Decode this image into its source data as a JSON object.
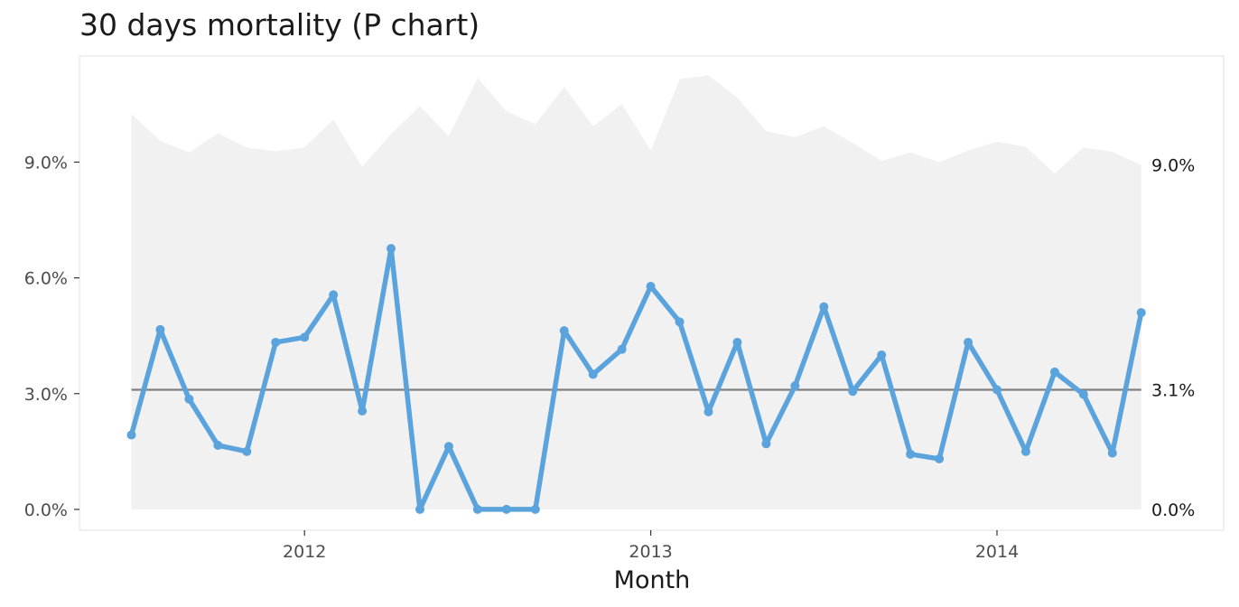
{
  "chart_data": {
    "type": "line",
    "title": "30 days mortality (P chart)",
    "xlabel": "Month",
    "ylabel": "",
    "ylim": [
      -0.0054,
      0.1175
    ],
    "y_ticks": [
      0,
      0.03,
      0.06,
      0.09
    ],
    "y_tick_labels": [
      "0.0%",
      "3.0%",
      "6.0%",
      "9.0%"
    ],
    "x_ticks": [
      "2012",
      "2013",
      "2014"
    ],
    "x_start": "2011-07",
    "center_line": 0.031,
    "right_labels": [
      "9.0%",
      "3.1%",
      "0.0%"
    ],
    "grid": false,
    "colors": {
      "line": "#5ba3dc",
      "center": "#808080",
      "band": "#f1f1f1",
      "panel_border": "#ebebeb"
    },
    "series": [
      {
        "values": [
          0.0193,
          0.0466,
          0.0286,
          0.0166,
          0.015,
          0.0433,
          0.0446,
          0.0556,
          0.0255,
          0.0676,
          0.0,
          0.0163,
          0.0,
          0.0,
          0.0,
          0.0463,
          0.035,
          0.0415,
          0.0578,
          0.0486,
          0.0253,
          0.0433,
          0.017,
          0.032,
          0.0525,
          0.0306,
          0.04,
          0.0143,
          0.0131,
          0.0433,
          0.031,
          0.015,
          0.0356,
          0.0298,
          0.0146,
          0.051
        ]
      }
    ],
    "upper_limit": [
      0.1025,
      0.0955,
      0.0925,
      0.0975,
      0.0938,
      0.0928,
      0.0938,
      0.101,
      0.0888,
      0.0973,
      0.1045,
      0.0967,
      0.1118,
      0.1032,
      0.0998,
      0.1095,
      0.0993,
      0.105,
      0.093,
      0.1115,
      0.1125,
      0.1067,
      0.098,
      0.0965,
      0.0993,
      0.095,
      0.0903,
      0.0925,
      0.09,
      0.093,
      0.0953,
      0.094,
      0.087,
      0.0938,
      0.0927,
      0.0893
    ]
  }
}
